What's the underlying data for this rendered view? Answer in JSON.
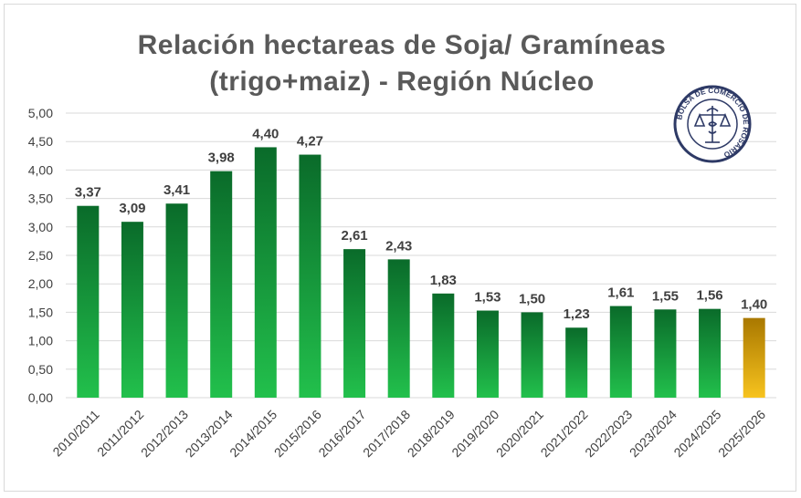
{
  "chart_data": {
    "type": "bar",
    "title_line1": "Relación hectareas de Soja/ Gramíneas",
    "title_line2": "(trigo+maiz) - Región Núcleo",
    "categories": [
      "2010/2011",
      "2011/2012",
      "2012/2013",
      "2013/2014",
      "2014/2015",
      "2015/2016",
      "2016/2017",
      "2017/2018",
      "2018/2019",
      "2019/2020",
      "2020/2021",
      "2021/2022",
      "2022/2023",
      "2023/2024",
      "2024/2025",
      "2025/2026"
    ],
    "values": [
      3.37,
      3.09,
      3.41,
      3.98,
      4.4,
      4.27,
      2.61,
      2.43,
      1.83,
      1.53,
      1.5,
      1.23,
      1.61,
      1.55,
      1.56,
      1.4
    ],
    "value_labels": [
      "3,37",
      "3,09",
      "3,41",
      "3,98",
      "4,40",
      "4,27",
      "2,61",
      "2,43",
      "1,83",
      "1,53",
      "1,50",
      "1,23",
      "1,61",
      "1,55",
      "1,56",
      "1,40"
    ],
    "highlighted_category": "2025/2026",
    "ylim": [
      0,
      5
    ],
    "yticks": [
      "0,00",
      "0,50",
      "1,00",
      "1,50",
      "2,00",
      "2,50",
      "3,00",
      "3,50",
      "4,00",
      "4,50",
      "5,00"
    ],
    "grid": true,
    "legend": "none",
    "colors": {
      "bar_top": "#0a6b2a",
      "bar_bottom": "#22c04c",
      "highlight_top": "#a97800",
      "highlight_bottom": "#f7c31e",
      "grid": "#d9d9d9",
      "text": "#404040"
    }
  },
  "logo": {
    "text": "BOLSA DE COMERCIO DE ROSARIO"
  }
}
